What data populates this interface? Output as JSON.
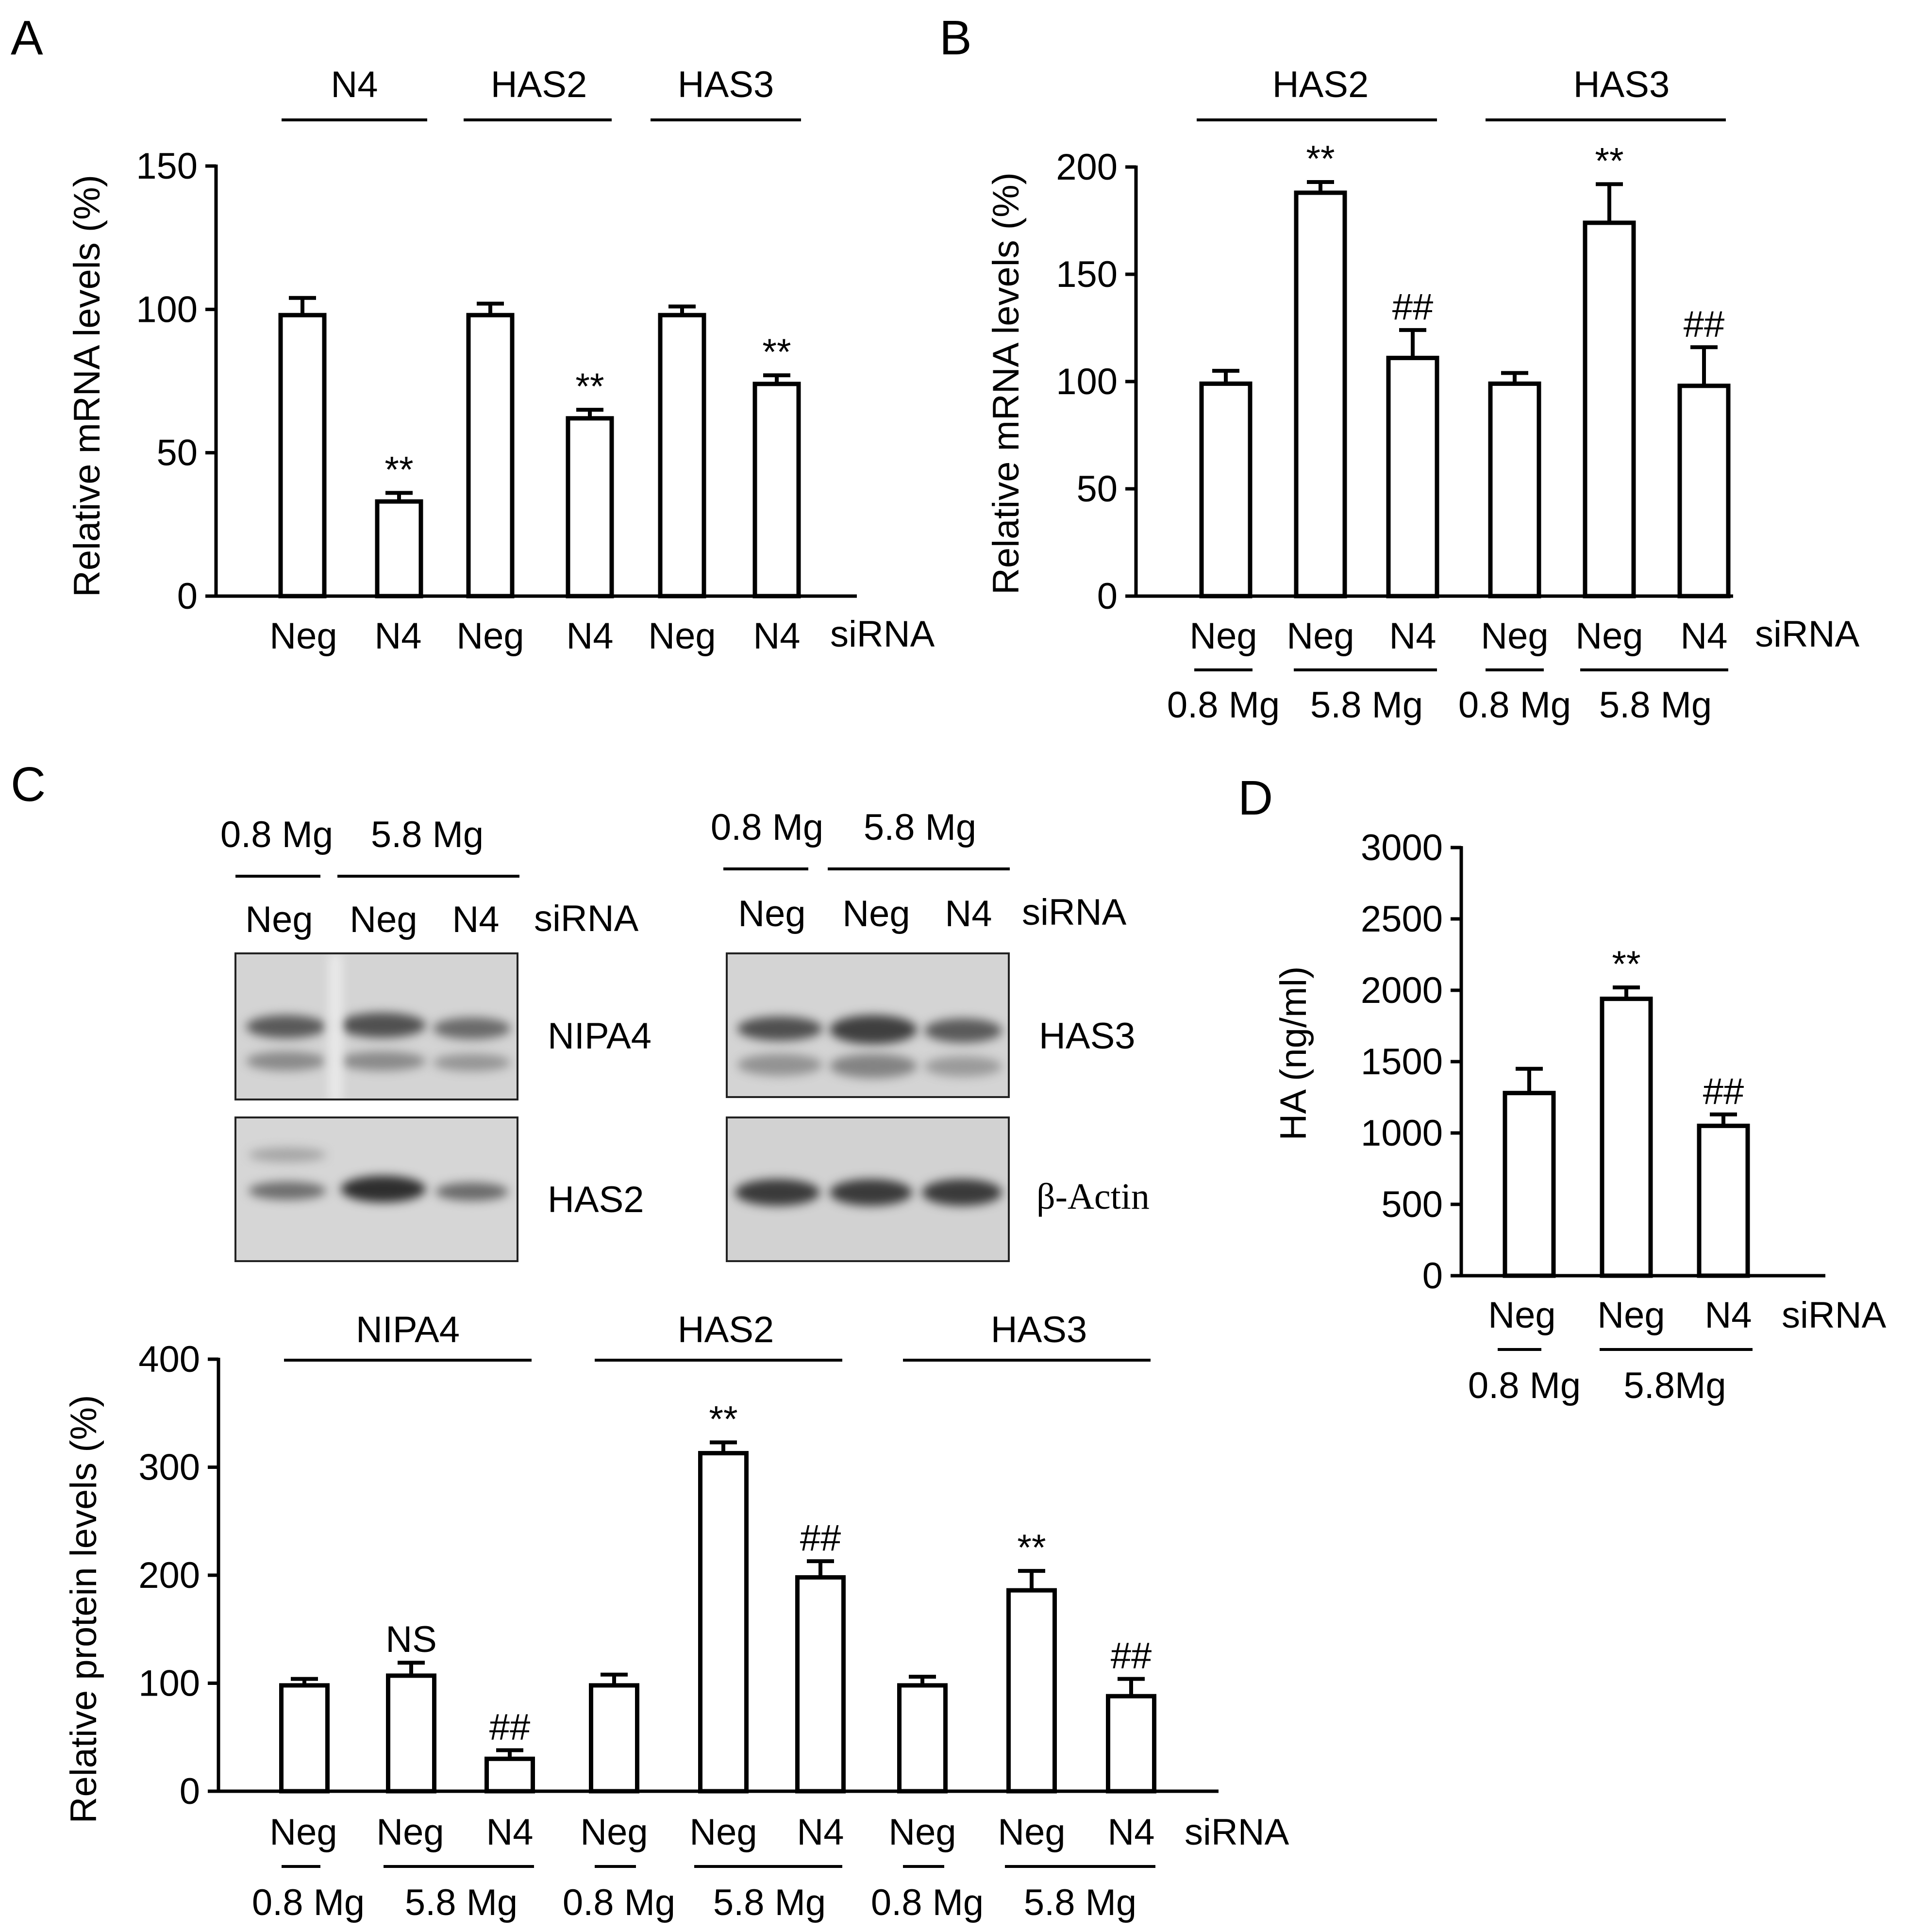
{
  "panels": [
    {
      "letter": "A",
      "ylabel": "Relative mRNA levels (%)",
      "yticks": [
        "0",
        "50",
        "100",
        "150"
      ],
      "ymax": 150,
      "groups": [
        "N4",
        "HAS2",
        "HAS3"
      ],
      "bars": [
        {
          "group": 0,
          "sirna": "Neg",
          "value": 98,
          "err": 6,
          "sig": ""
        },
        {
          "group": 0,
          "sirna": "N4",
          "value": 33,
          "err": 3,
          "sig": "**"
        },
        {
          "group": 1,
          "sirna": "Neg",
          "value": 98,
          "err": 4,
          "sig": ""
        },
        {
          "group": 1,
          "sirna": "N4",
          "value": 62,
          "err": 3,
          "sig": "**"
        },
        {
          "group": 2,
          "sirna": "Neg",
          "value": 98,
          "err": 3,
          "sig": ""
        },
        {
          "group": 2,
          "sirna": "N4",
          "value": 74,
          "err": 3,
          "sig": "**"
        }
      ],
      "sirna_label": "siRNA"
    },
    {
      "letter": "B",
      "ylabel": "Relative mRNA levels (%)",
      "yticks": [
        "0",
        "50",
        "100",
        "150",
        "200"
      ],
      "ymax": 200,
      "groups": [
        "HAS2",
        "HAS3"
      ],
      "bars": [
        {
          "group": 0,
          "sirna": "Neg",
          "value": 99,
          "err": 6,
          "sig": ""
        },
        {
          "group": 0,
          "sirna": "Neg",
          "value": 188,
          "err": 5,
          "sig": "**"
        },
        {
          "group": 0,
          "sirna": "N4",
          "value": 111,
          "err": 13,
          "sig": "##"
        },
        {
          "group": 1,
          "sirna": "Neg",
          "value": 99,
          "err": 5,
          "sig": ""
        },
        {
          "group": 1,
          "sirna": "Neg",
          "value": 174,
          "err": 18,
          "sig": "**"
        },
        {
          "group": 1,
          "sirna": "N4",
          "value": 98,
          "err": 18,
          "sig": "##"
        }
      ],
      "mg": [
        "0.8 Mg",
        "5.8 Mg",
        "0.8 Mg",
        "5.8 Mg"
      ],
      "sirna_label": "siRNA"
    },
    {
      "letter": "C",
      "ylabel": "Relative protein levels (%)",
      "yticks": [
        "0",
        "100",
        "200",
        "300",
        "400"
      ],
      "ymax": 400,
      "groups": [
        "NIPA4",
        "HAS2",
        "HAS3"
      ],
      "bars": [
        {
          "group": 0,
          "sirna": "Neg",
          "value": 98,
          "err": 6,
          "sig": ""
        },
        {
          "group": 0,
          "sirna": "Neg",
          "value": 107,
          "err": 12,
          "sig": "NS"
        },
        {
          "group": 0,
          "sirna": "N4",
          "value": 30,
          "err": 8,
          "sig": "##"
        },
        {
          "group": 1,
          "sirna": "Neg",
          "value": 98,
          "err": 10,
          "sig": ""
        },
        {
          "group": 1,
          "sirna": "Neg",
          "value": 313,
          "err": 10,
          "sig": "**"
        },
        {
          "group": 1,
          "sirna": "N4",
          "value": 198,
          "err": 15,
          "sig": "##"
        },
        {
          "group": 2,
          "sirna": "Neg",
          "value": 98,
          "err": 8,
          "sig": ""
        },
        {
          "group": 2,
          "sirna": "Neg",
          "value": 186,
          "err": 18,
          "sig": "**"
        },
        {
          "group": 2,
          "sirna": "N4",
          "value": 88,
          "err": 16,
          "sig": "##"
        }
      ],
      "mg": [
        "0.8 Mg",
        "5.8 Mg",
        "0.8 Mg",
        "5.8 Mg",
        "0.8 Mg",
        "5.8 Mg"
      ],
      "sirna_label": "siRNA",
      "blot_left": {
        "mg": [
          "0.8 Mg",
          "5.8 Mg"
        ],
        "lanes": [
          "Neg",
          "Neg",
          "N4"
        ],
        "sirna_label": "siRNA",
        "top_label": "NIPA4",
        "bottom_label": "HAS2"
      },
      "blot_right": {
        "mg": [
          "0.8 Mg",
          "5.8 Mg"
        ],
        "lanes": [
          "Neg",
          "Neg",
          "N4"
        ],
        "sirna_label": "siRNA",
        "top_label": "HAS3",
        "bottom_label": "β-Actin"
      }
    },
    {
      "letter": "D",
      "ylabel": "HA  (ng/ml)",
      "yticks": [
        "0",
        "500",
        "1000",
        "1500",
        "2000",
        "2500",
        "3000"
      ],
      "ymax": 3000,
      "bars": [
        {
          "sirna": "Neg",
          "value": 1280,
          "err": 170,
          "sig": ""
        },
        {
          "sirna": "Neg",
          "value": 1940,
          "err": 80,
          "sig": "**"
        },
        {
          "sirna": "N4",
          "value": 1050,
          "err": 80,
          "sig": "##"
        }
      ],
      "mg": [
        "0.8 Mg",
        "5.8Mg"
      ],
      "sirna_label": "siRNA"
    }
  ],
  "chart_data": [
    {
      "type": "bar",
      "title": "",
      "ylabel": "Relative mRNA levels (%)",
      "ylim": [
        0,
        150
      ],
      "categories": [
        "N4 Neg",
        "N4 N4",
        "HAS2 Neg",
        "HAS2 N4",
        "HAS3 Neg",
        "HAS3 N4"
      ],
      "values": [
        98,
        33,
        98,
        62,
        98,
        74
      ],
      "errors": [
        6,
        3,
        4,
        3,
        3,
        3
      ]
    },
    {
      "type": "bar",
      "title": "",
      "ylabel": "Relative mRNA levels (%)",
      "ylim": [
        0,
        200
      ],
      "categories": [
        "HAS2 Neg 0.8 Mg",
        "HAS2 Neg 5.8 Mg",
        "HAS2 N4 5.8 Mg",
        "HAS3 Neg 0.8 Mg",
        "HAS3 Neg 5.8 Mg",
        "HAS3 N4 5.8 Mg"
      ],
      "values": [
        99,
        188,
        111,
        99,
        174,
        98
      ],
      "errors": [
        6,
        5,
        13,
        5,
        18,
        18
      ]
    },
    {
      "type": "bar",
      "title": "",
      "ylabel": "Relative protein levels (%)",
      "ylim": [
        0,
        400
      ],
      "categories": [
        "NIPA4 Neg 0.8 Mg",
        "NIPA4 Neg 5.8 Mg",
        "NIPA4 N4 5.8 Mg",
        "HAS2 Neg 0.8 Mg",
        "HAS2 Neg 5.8 Mg",
        "HAS2 N4 5.8 Mg",
        "HAS3 Neg 0.8 Mg",
        "HAS3 Neg 5.8 Mg",
        "HAS3 N4 5.8 Mg"
      ],
      "values": [
        98,
        107,
        30,
        98,
        313,
        198,
        98,
        186,
        88
      ],
      "errors": [
        6,
        12,
        8,
        10,
        10,
        15,
        8,
        18,
        16
      ]
    },
    {
      "type": "bar",
      "title": "",
      "ylabel": "HA  (ng/ml)",
      "ylim": [
        0,
        3000
      ],
      "categories": [
        "Neg 0.8 Mg",
        "Neg 5.8Mg",
        "N4 5.8Mg"
      ],
      "values": [
        1280,
        1940,
        1050
      ],
      "errors": [
        170,
        80,
        80
      ]
    }
  ]
}
